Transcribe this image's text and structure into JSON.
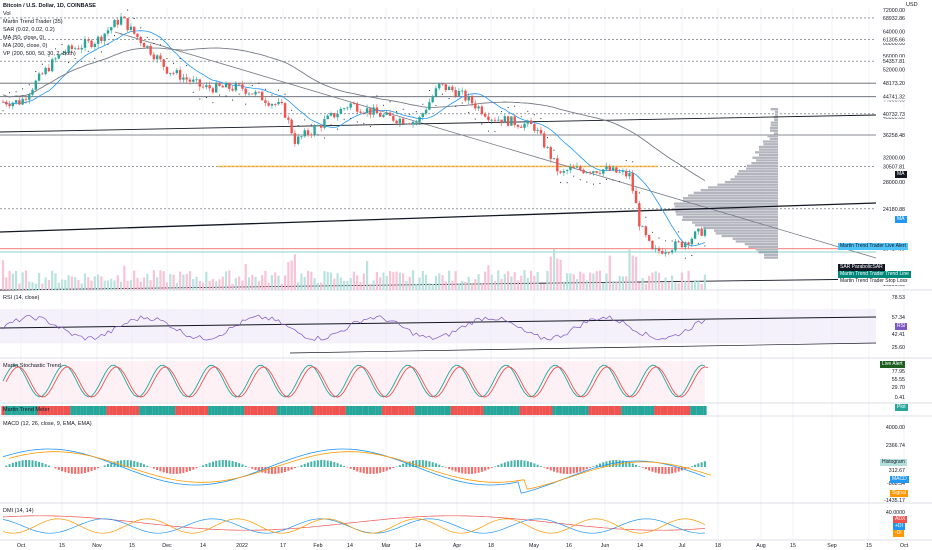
{
  "header": {
    "symbol_line": "Bitcoin / U.S. Dollar, 1D, COINBASE",
    "indicators": [
      "Vol",
      "Martin Trend Trader (35)",
      "SAR (0.02, 0.02, 0.2)",
      "MA (50, close, 0)",
      "MA (200, close, 0)",
      "VP (200, 500, 50, 30, 2, Both)"
    ],
    "currency": "USD"
  },
  "panes": {
    "rsi_title": "RSI (14, close)",
    "stoch_title": "Martin Stochastic Trend",
    "meter_title": "Martin Trend Meter",
    "macd_title": "MACD (12, 26, close, 9, EMA, EMA)",
    "dmi_title": "DMI (14, 14)"
  },
  "price_axis": {
    "ticks": [
      "72000.00",
      "64000.00",
      "60000.00",
      "56000.00",
      "52000.00",
      "44000.00",
      "40000.00",
      "36000.00",
      "32000.00",
      "28000.00",
      "16000.00"
    ],
    "levels": [
      "68932.86",
      "61305.66",
      "54357.81",
      "48173.20",
      "44741.32",
      "40732.73",
      "36258.48",
      "30507.81",
      "24180.88",
      "19417.09"
    ]
  },
  "osc_axis": {
    "rsi": [
      "78.53",
      "57.34",
      "42.41",
      "25.60"
    ],
    "stoch": [
      "77.95",
      "55.55",
      "29.70",
      "0.41"
    ],
    "macd": [
      "4000.00",
      "2366.74",
      "312.67",
      "-868.54",
      "-1435.17"
    ],
    "dmi": [
      "40.0000"
    ]
  },
  "tags": {
    "ma": "MA",
    "ma2": "MA",
    "live_alert": "Martin Trend Trader Live Alert",
    "sar": "SAR ParabolicSAR",
    "trend_line": "Martin Trend Trader Trend Line",
    "stop_loss": "Martin Trend Trader Stop Loss",
    "rsi": "RSI",
    "live_alert_short": "Live Alert",
    "plot": "Plot",
    "histogram": "Histogram",
    "macd": "MACD",
    "signal": "Signal",
    "adx": "ADX",
    "di_plus": "+DI",
    "di_minus": "-DI"
  },
  "time_axis": [
    "Oct",
    "15",
    "Nov",
    "15",
    "Dec",
    "14",
    "2022",
    "17",
    "Feb",
    "14",
    "Mar",
    "14",
    "Apr",
    "18",
    "May",
    "16",
    "Jun",
    "14",
    "Jul",
    "18",
    "Aug",
    "15",
    "Sep",
    "15",
    "Oct"
  ],
  "colors": {
    "up": "#26a69a",
    "down": "#ef5350",
    "ma50": "#2196f3",
    "ma200": "#787b86",
    "sar": "#131722",
    "rsi": "#7e57c2",
    "alert": "#4fc3f7"
  },
  "chart_data": {
    "type": "candlestick",
    "symbol": "Bitcoin / U.S. Dollar",
    "interval": "1D",
    "x_range": [
      "Oct 2021",
      "Oct 2022"
    ],
    "ylim": [
      16000,
      72000
    ],
    "price_path": [
      [
        "Oct 2021",
        43500
      ],
      [
        "Oct 15",
        57000
      ],
      [
        "Nov 2021",
        61000
      ],
      [
        "Nov 10",
        68932.86
      ],
      [
        "Nov 15",
        64000
      ],
      [
        "Dec 2021",
        52000
      ],
      [
        "Dec 14",
        47000
      ],
      [
        "2022",
        47000
      ],
      [
        "Jan 17",
        42000
      ],
      [
        "Jan 24",
        35000
      ],
      [
        "Feb 2022",
        38000
      ],
      [
        "Feb 14",
        43000
      ],
      [
        "Mar 2022",
        40000
      ],
      [
        "Mar 14",
        39000
      ],
      [
        "Mar 28",
        47500
      ],
      [
        "Apr 2022",
        46000
      ],
      [
        "Apr 18",
        40000
      ],
      [
        "May 2022",
        38000
      ],
      [
        "May 12",
        29000
      ],
      [
        "May 16",
        30000
      ],
      [
        "Jun 2022",
        30000
      ],
      [
        "Jun 10",
        29000
      ],
      [
        "Jun 14",
        22000
      ],
      [
        "Jun 18",
        19000
      ],
      [
        "Jul 2022",
        20000
      ],
      [
        "Jul 8",
        21500
      ]
    ]
  }
}
